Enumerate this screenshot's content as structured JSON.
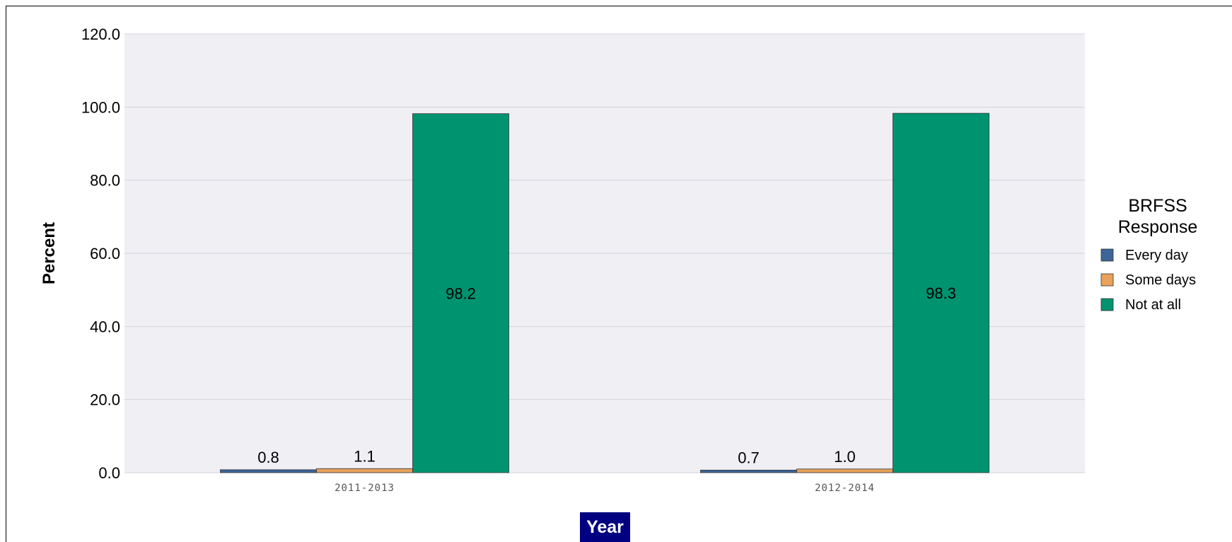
{
  "chart_data": {
    "type": "bar",
    "categories": [
      "2011-2013",
      "2012-2014"
    ],
    "series": [
      {
        "name": "Every day",
        "values": [
          0.8,
          0.7
        ],
        "color": "#3d6598"
      },
      {
        "name": "Some days",
        "values": [
          1.1,
          1.0
        ],
        "color": "#e8a25a"
      },
      {
        "name": "Not at all",
        "values": [
          98.2,
          98.3
        ],
        "color": "#009370"
      }
    ],
    "data_labels": [
      [
        "0.8",
        "0.7"
      ],
      [
        "1.1",
        "1.0"
      ],
      [
        "98.2",
        "98.3"
      ]
    ],
    "ylabel": "Percent",
    "xlabel": "Year",
    "ylim": [
      0,
      120
    ],
    "yticks": [
      0,
      20,
      40,
      60,
      80,
      100,
      120
    ],
    "ytick_labels": [
      "0.0",
      "20.0",
      "40.0",
      "60.0",
      "80.0",
      "100.0",
      "120.0"
    ],
    "legend_title": [
      "BRFSS",
      "Response"
    ],
    "legend_position": "right",
    "grid": true,
    "plot_background": "#efeff4",
    "grid_color": "#d2d2da"
  }
}
